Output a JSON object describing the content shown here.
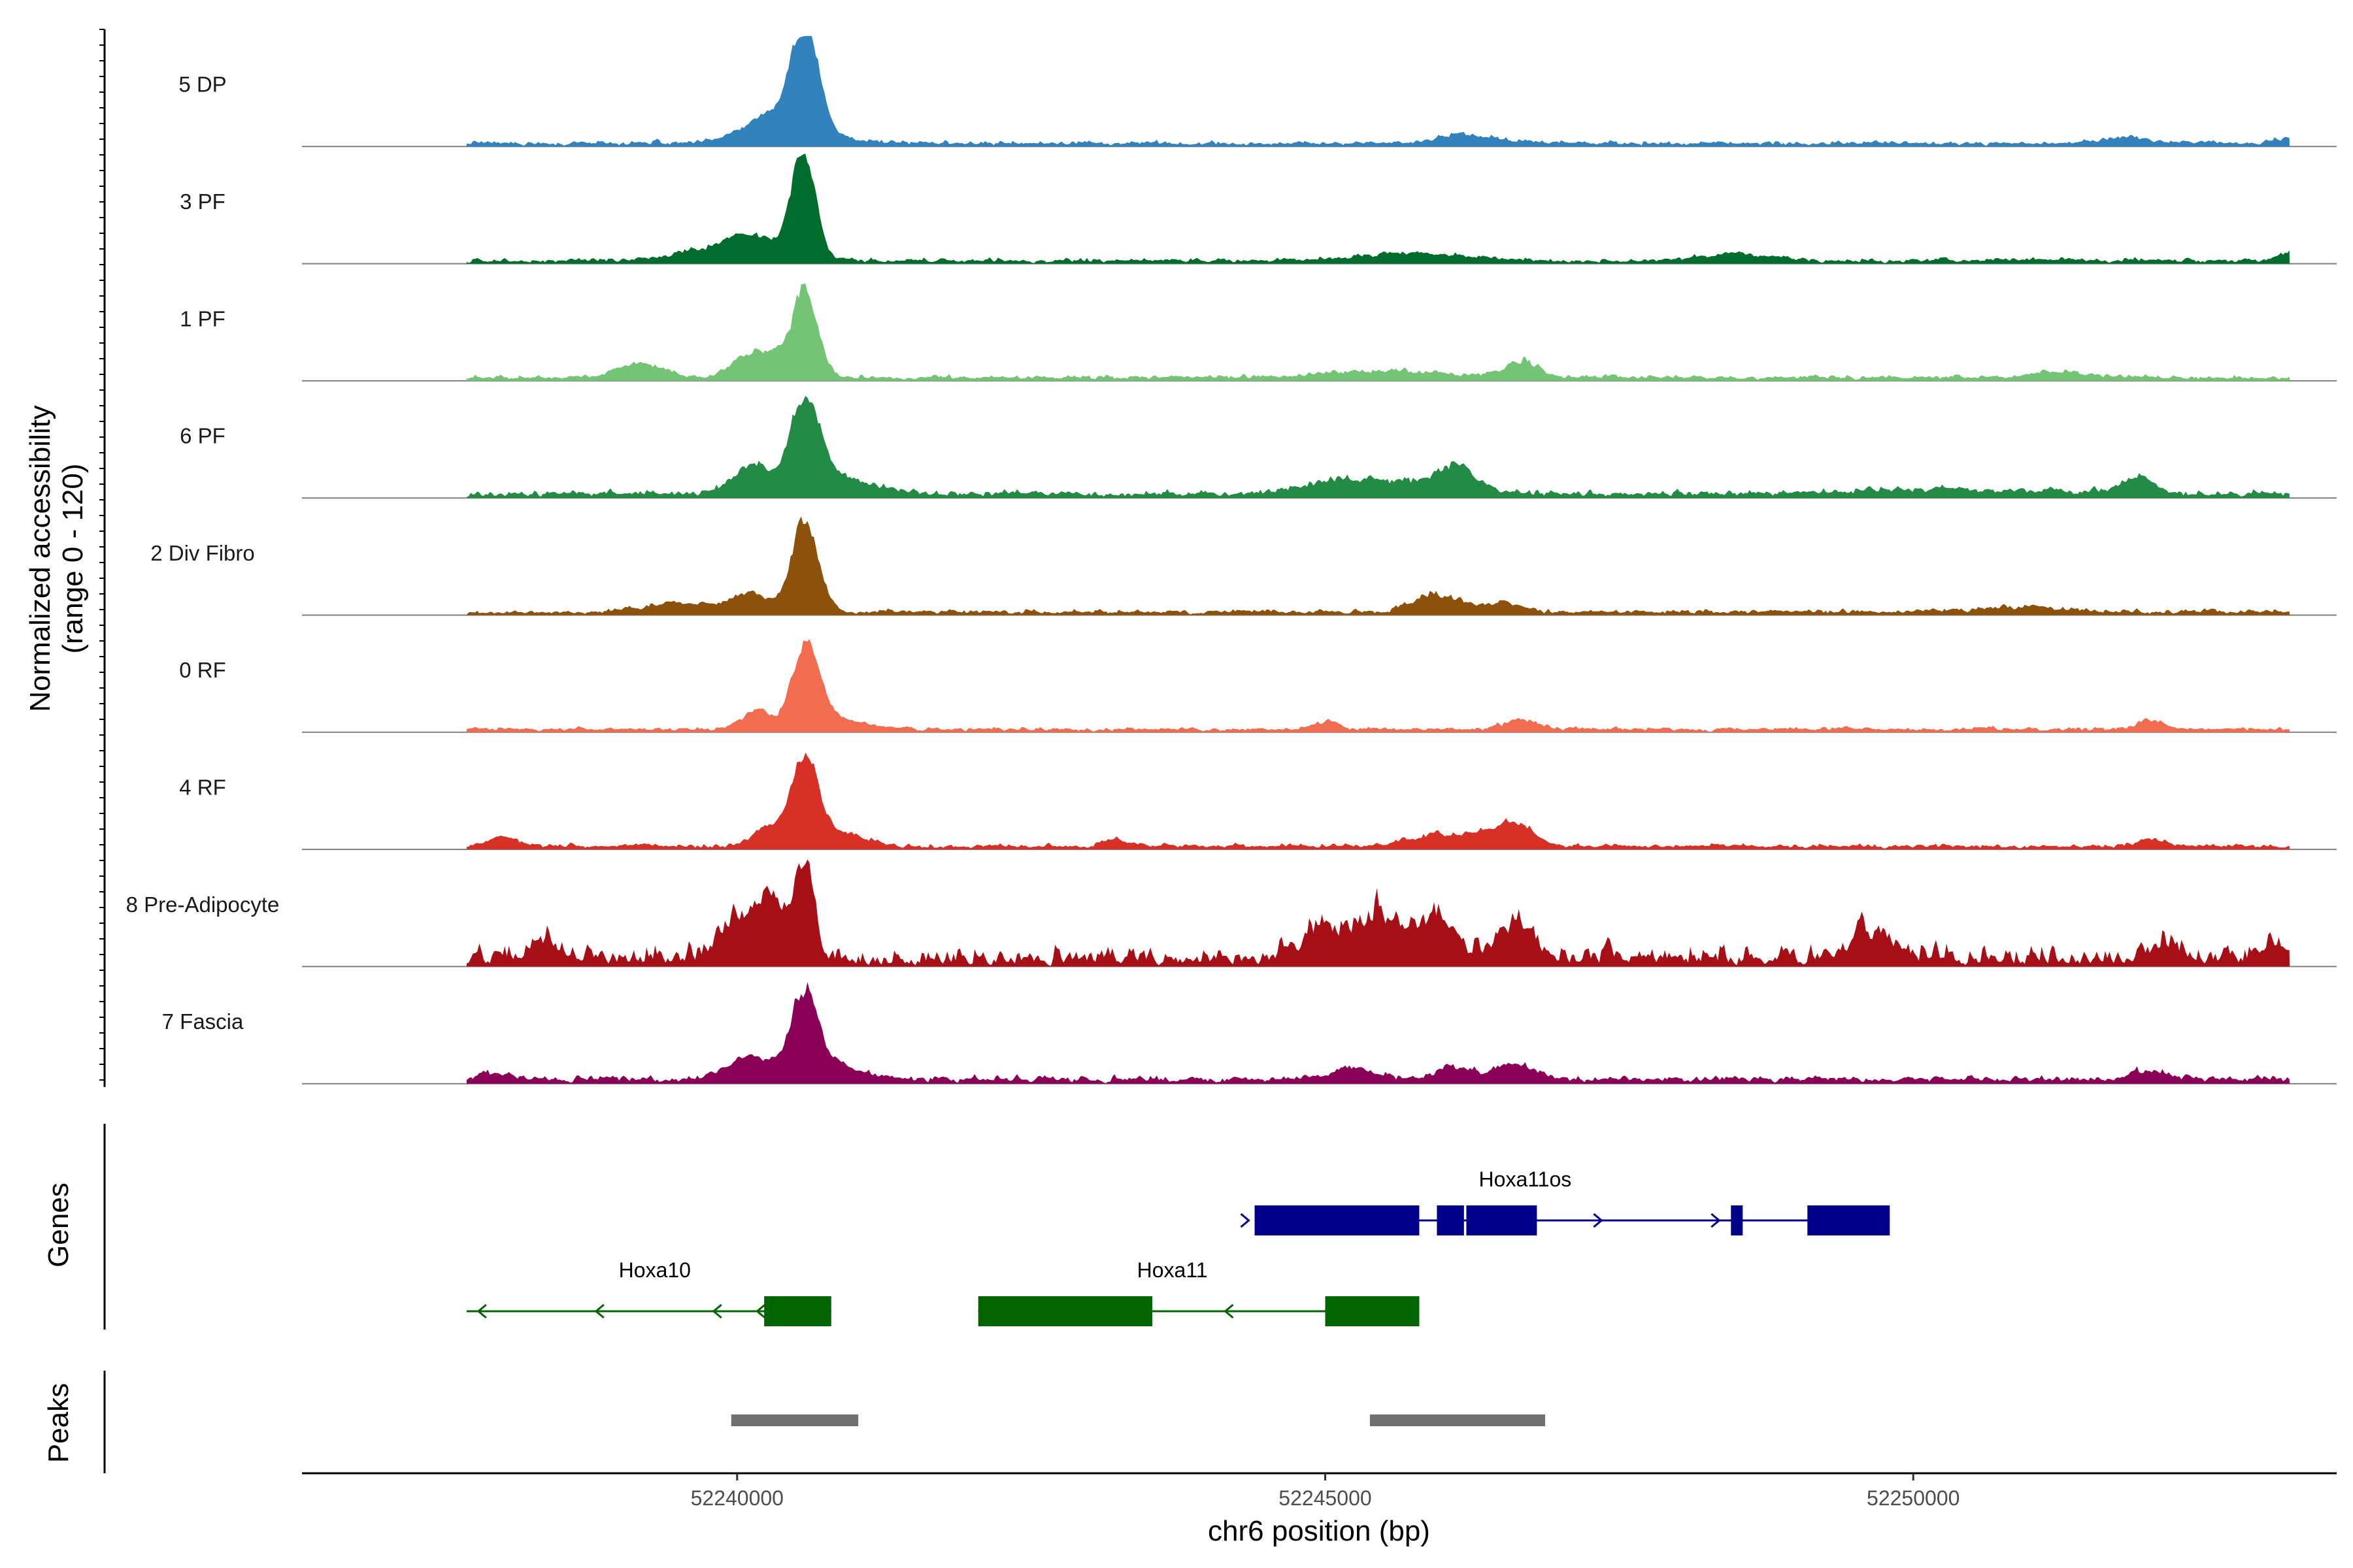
{
  "chart_data": {
    "type": "area",
    "title": "",
    "ylabel_line1": "Normalized accessibility",
    "ylabel_line2": "(range 0 - 120)",
    "y_range": [
      0,
      120
    ],
    "xlabel": "chr6 position (bp)",
    "x_range": [
      52236300,
      52253600
    ],
    "x_ticks": [
      {
        "value": 52240000,
        "label": "52240000"
      },
      {
        "value": 52245000,
        "label": "52245000"
      },
      {
        "value": 52250000,
        "label": "52250000"
      }
    ],
    "data_start": 52237700,
    "data_end": 52253200,
    "tracks": [
      {
        "name": "5 DP",
        "color": "#3182BD",
        "baseline": 3,
        "noise": 5,
        "rough": 0.1,
        "peaks": [
          [
            52240300,
            200,
            22
          ],
          [
            52240570,
            110,
            120
          ],
          [
            52240400,
            400,
            12
          ]
        ],
        "bumps": [
          [
            52246200,
            250,
            10
          ],
          [
            52251800,
            200,
            8
          ],
          [
            52253100,
            80,
            6
          ]
        ]
      },
      {
        "name": "3 PF",
        "color": "#006D2C",
        "baseline": 3,
        "noise": 5,
        "rough": 0.1,
        "peaks": [
          [
            52240100,
            200,
            25
          ],
          [
            52240550,
            100,
            125
          ],
          [
            52239700,
            300,
            10
          ]
        ],
        "bumps": [
          [
            52245700,
            400,
            9
          ],
          [
            52248500,
            300,
            8
          ],
          [
            52253150,
            80,
            10
          ]
        ]
      },
      {
        "name": "1 PF",
        "color": "#74C476",
        "baseline": 3,
        "noise": 5,
        "rough": 0.08,
        "peaks": [
          [
            52239150,
            200,
            15
          ],
          [
            52240100,
            150,
            25
          ],
          [
            52240350,
            120,
            20
          ],
          [
            52240570,
            100,
            100
          ]
        ],
        "bumps": [
          [
            52245500,
            500,
            8
          ],
          [
            52246650,
            150,
            20
          ],
          [
            52251200,
            200,
            8
          ]
        ]
      },
      {
        "name": "6 PF",
        "color": "#238B45",
        "baseline": 4,
        "noise": 7,
        "rough": 0.15,
        "peaks": [
          [
            52240100,
            150,
            30
          ],
          [
            52240560,
            120,
            95
          ],
          [
            52240800,
            300,
            20
          ]
        ],
        "bumps": [
          [
            52245100,
            300,
            15
          ],
          [
            52245800,
            400,
            15
          ],
          [
            52246100,
            120,
            25
          ],
          [
            52250200,
            800,
            6
          ],
          [
            52251900,
            120,
            22
          ]
        ]
      },
      {
        "name": "2 Div Fibro",
        "color": "#8C510A",
        "baseline": 3,
        "noise": 5,
        "rough": 0.12,
        "peaks": [
          [
            52240100,
            150,
            20
          ],
          [
            52240560,
            110,
            100
          ],
          [
            52239500,
            300,
            10
          ]
        ],
        "bumps": [
          [
            52245800,
            150,
            15
          ],
          [
            52246050,
            150,
            15
          ],
          [
            52246500,
            120,
            15
          ],
          [
            52250900,
            400,
            6
          ]
        ]
      },
      {
        "name": "0 RF",
        "color": "#F26C4F",
        "baseline": 3,
        "noise": 4,
        "rough": 0.06,
        "peaks": [
          [
            52240150,
            120,
            20
          ],
          [
            52240570,
            110,
            95
          ],
          [
            52240800,
            250,
            12
          ]
        ],
        "bumps": [
          [
            52245000,
            100,
            10
          ],
          [
            52246650,
            150,
            12
          ],
          [
            52252000,
            100,
            12
          ]
        ]
      },
      {
        "name": "4 RF",
        "color": "#D73027",
        "baseline": 3,
        "noise": 5,
        "rough": 0.1,
        "peaks": [
          [
            52240230,
            120,
            20
          ],
          [
            52240560,
            110,
            105
          ],
          [
            52240900,
            180,
            15
          ],
          [
            52238000,
            120,
            10
          ]
        ],
        "bumps": [
          [
            52243200,
            100,
            10
          ],
          [
            52245900,
            200,
            15
          ],
          [
            52246600,
            150,
            30
          ],
          [
            52246300,
            150,
            12
          ],
          [
            52252000,
            120,
            10
          ]
        ]
      },
      {
        "name": "8 Pre-Adipocyte",
        "color": "#A50F15",
        "baseline": 8,
        "noise": 28,
        "rough": 0.55,
        "peaks": [
          [
            52240280,
            100,
            70
          ],
          [
            52240560,
            80,
            110
          ],
          [
            52240000,
            150,
            45
          ]
        ],
        "bumps": [
          [
            52238350,
            150,
            20
          ],
          [
            52245000,
            200,
            45
          ],
          [
            52245450,
            150,
            55
          ],
          [
            52245900,
            150,
            50
          ],
          [
            52246600,
            150,
            45
          ],
          [
            52249600,
            200,
            30
          ],
          [
            52252150,
            150,
            18
          ],
          [
            52253050,
            100,
            20
          ]
        ]
      },
      {
        "name": "7 Fascia",
        "color": "#8B0057",
        "baseline": 4,
        "noise": 7,
        "rough": 0.12,
        "peaks": [
          [
            52240100,
            200,
            25
          ],
          [
            52240560,
            110,
            90
          ],
          [
            52240800,
            250,
            15
          ]
        ],
        "bumps": [
          [
            52237900,
            150,
            8
          ],
          [
            52245200,
            200,
            12
          ],
          [
            52246100,
            150,
            15
          ],
          [
            52246600,
            150,
            18
          ],
          [
            52252000,
            150,
            12
          ]
        ]
      }
    ],
    "genes_label": "Genes",
    "genes": [
      {
        "name": "Hoxa11os",
        "strand": "+",
        "color": "#00008B",
        "span": [
          52244400,
          52249800
        ],
        "exons": [
          [
            52244400,
            52245800
          ],
          [
            52245950,
            52246180
          ],
          [
            52246200,
            52246800
          ],
          [
            52248450,
            52248550
          ],
          [
            52249100,
            52249800
          ]
        ],
        "arrows": [
          52244350,
          52247350,
          52248350
        ]
      },
      {
        "name": "Hoxa10",
        "strand": "-",
        "color": "#006400",
        "span": [
          52237700,
          52240800
        ],
        "exons": [
          [
            52240230,
            52240800
          ]
        ],
        "arrows": [
          52237800,
          52238800,
          52239800,
          52240170
        ]
      },
      {
        "name": "Hoxa11",
        "strand": "-",
        "color": "#006400",
        "span": [
          52242050,
          52245800
        ],
        "exons": [
          [
            52242050,
            52243530
          ],
          [
            52245000,
            52245800
          ]
        ],
        "arrows": [
          52244150
        ]
      }
    ],
    "peaks_label": "Peaks",
    "peak_regions": [
      [
        52239950,
        52241030
      ],
      [
        52245380,
        52246870
      ]
    ],
    "peak_color": "#707070"
  }
}
